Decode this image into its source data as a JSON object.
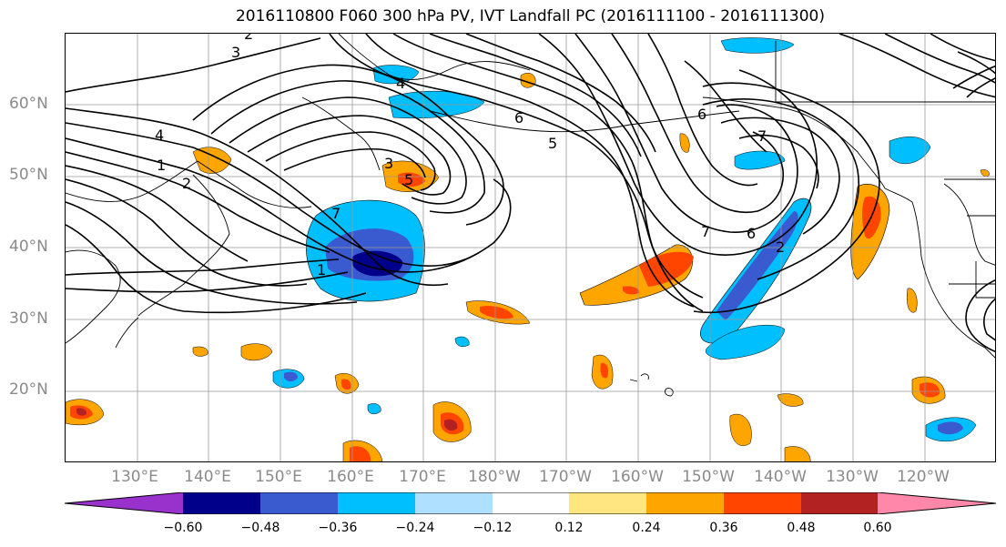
{
  "title": "2016110800 F060 300 hPa PV, IVT Landfall PC (2016111100 - 2016111300)",
  "lat_labels": [
    "60°N",
    "50°N",
    "40°N",
    "30°N",
    "20°N"
  ],
  "lon_labels": [
    "130°E",
    "140°E",
    "150°E",
    "160°E",
    "170°E",
    "180°W",
    "170°W",
    "160°W",
    "150°W",
    "140°W",
    "130°W",
    "120°W"
  ],
  "contour_labels": [
    "3",
    "2",
    "4",
    "5",
    "7",
    "1",
    "6",
    "6",
    "7",
    "6",
    "7",
    "2",
    "1",
    "2",
    "3",
    "4",
    "5"
  ],
  "colorbar": {
    "ticks": [
      "−0.60",
      "−0.48",
      "−0.36",
      "−0.24",
      "−0.12",
      "0.12",
      "0.24",
      "0.36",
      "0.48",
      "0.60"
    ],
    "colors": [
      "#9932cc",
      "#00008b",
      "#3a5bd0",
      "#00bfff",
      "#b0e0ff",
      "#ffffff",
      "#ffe680",
      "#ffa500",
      "#ff4500",
      "#b22222",
      "#ff88aa"
    ]
  },
  "map": {
    "projection": "equirectangular",
    "lon_range": "120°E–110°W",
    "lat_range": "10°N–70°N",
    "features": [
      "coastlines",
      "country borders",
      "US state borders",
      "lat/lon gridlines",
      "PV contours",
      "IVT shading"
    ]
  }
}
